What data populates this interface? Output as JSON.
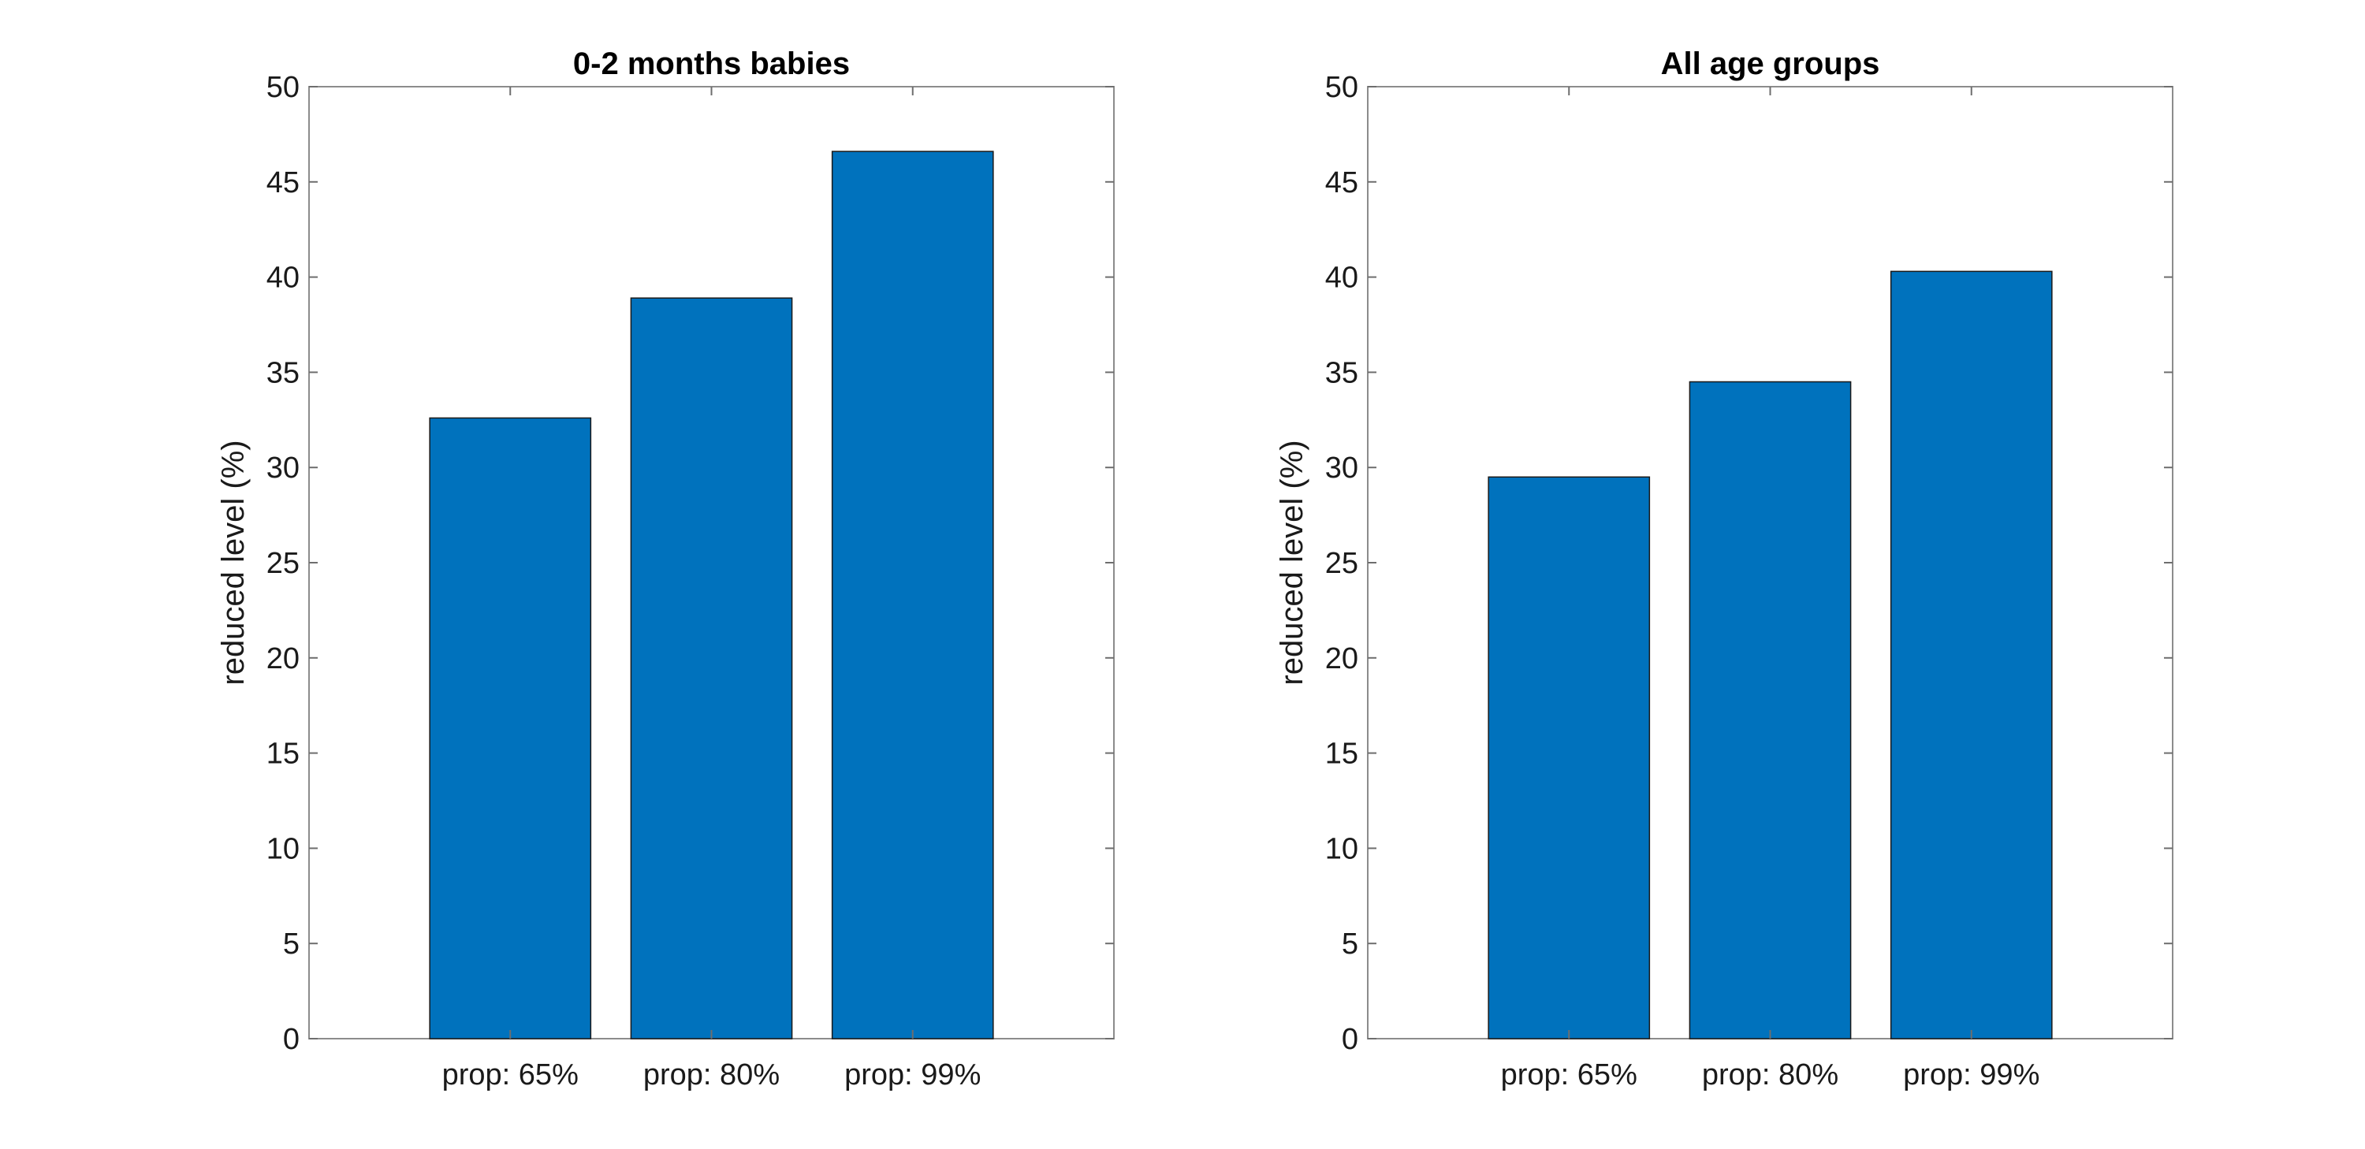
{
  "chart_data": [
    {
      "type": "bar",
      "title": "0-2 months babies",
      "ylabel": "reduced level (%)",
      "xlabel": "",
      "categories": [
        "prop: 65%",
        "prop: 80%",
        "prop: 99%"
      ],
      "values": [
        32.6,
        38.9,
        46.6
      ],
      "ylim": [
        0,
        50
      ],
      "yticks": [
        "0",
        "5",
        "10",
        "15",
        "20",
        "25",
        "30",
        "35",
        "40",
        "45",
        "50"
      ],
      "grid": false,
      "bar_color": "#0072BD"
    },
    {
      "type": "bar",
      "title": "All age groups",
      "ylabel": "reduced level (%)",
      "xlabel": "",
      "categories": [
        "prop: 65%",
        "prop: 80%",
        "prop: 99%"
      ],
      "values": [
        29.5,
        34.5,
        40.3
      ],
      "ylim": [
        0,
        50
      ],
      "yticks": [
        "0",
        "5",
        "10",
        "15",
        "20",
        "25",
        "30",
        "35",
        "40",
        "45",
        "50"
      ],
      "grid": false,
      "bar_color": "#0072BD"
    }
  ]
}
